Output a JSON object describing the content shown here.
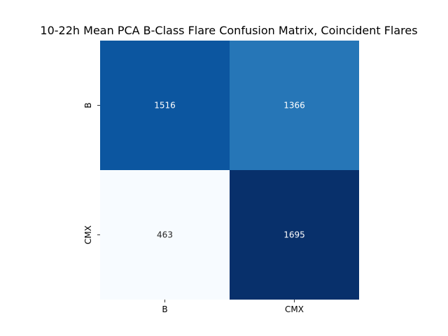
{
  "chart_data": {
    "type": "heatmap",
    "title": "10-22h Mean PCA B-Class Flare Confusion Matrix, Coincident Flares",
    "x_categories": [
      "B",
      "CMX"
    ],
    "y_categories": [
      "B",
      "CMX"
    ],
    "values": [
      [
        1516,
        1366
      ],
      [
        463,
        1695
      ]
    ],
    "value_range": [
      463,
      1695
    ],
    "colormap": "Blues",
    "annot_colors": {
      "dark_bg": "#ffffff",
      "light_bg": "#262626"
    },
    "colorbar": false,
    "grid": false
  }
}
